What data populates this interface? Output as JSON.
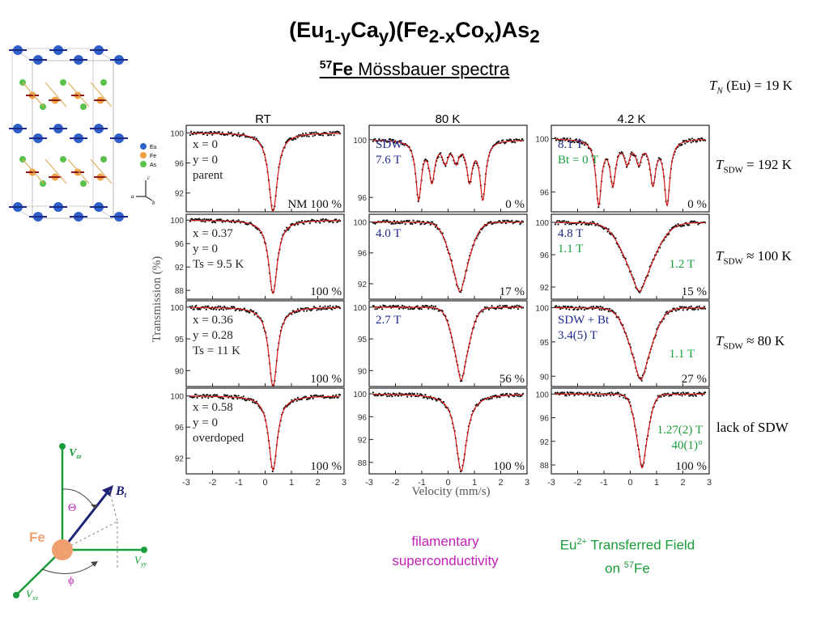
{
  "title": {
    "pre": "(Eu",
    "s1": "1-y",
    "mid1": "Ca",
    "s2": "y",
    "mid2": ")(Fe",
    "s3": "2-x",
    "mid3": "Co",
    "s4": "x",
    "mid4": ")As",
    "s5": "2"
  },
  "subtitle": {
    "sup": "57",
    "bold": "Fe",
    "rest": " Mössbauer spectra"
  },
  "side_labels": {
    "tn": {
      "T": "T",
      "sub": "N",
      "rest": " (Eu) = 19 K"
    },
    "row1": {
      "T": "T",
      "sub": "SDW",
      "rest": " = 192 K"
    },
    "row2": {
      "T": "T",
      "sub": "SDW",
      "rest": " ≈ 100 K"
    },
    "row3": {
      "T": "T",
      "sub": "SDW",
      "rest": " ≈ 80 K"
    },
    "row4": "lack of SDW"
  },
  "bottom_notes": {
    "filamentary_line1": "filamentary",
    "filamentary_line2": "superconductivity",
    "transferred_pre": "Eu",
    "transferred_sup": "2+",
    "transferred_rest": " Transferred Field",
    "transferred_line2_pre": "on ",
    "transferred_line2_sup": "57",
    "transferred_line2_rest": "Fe"
  },
  "colors": {
    "data_points": "#111111",
    "fit_line": "#d01818",
    "blue_text": "#1c2a8c",
    "green_text": "#1a9c3a",
    "magenta_text": "#c21fb8",
    "fe_atom": "#f0a070",
    "eu_atom": "#2f5fc8",
    "as_atom": "#5ac24a"
  },
  "diagram": {
    "vzz": "V",
    "vzz_sub": "zz",
    "vyy": "V",
    "vyy_sub": "yy",
    "vxx": "V",
    "vxx_sub": "xx",
    "bt": "B",
    "bt_sub": "t",
    "theta": "Θ",
    "phi": "ϕ",
    "fe": "Fe"
  },
  "crystal_legend": {
    "eu": "Eu",
    "fe": "Fe",
    "as": "As",
    "c_axis": "c",
    "a_axis": "a",
    "b_axis": "b"
  },
  "chart_data": {
    "type": "scatter",
    "xlabel": "Velocity (mm/s)",
    "ylabel": "Transmission (%)",
    "xlim": [
      -3,
      3
    ],
    "xticks": [
      -3,
      -2,
      -1,
      0,
      1,
      2,
      3
    ],
    "columns": [
      "RT",
      "80 K",
      "4.2 K"
    ],
    "panels": [
      {
        "row": 0,
        "col": 0,
        "yticks": [
          100,
          96,
          92
        ],
        "ylim": [
          89.5,
          101
        ],
        "lines": [
          14,
          15,
          16,
          17,
          18,
          19,
          20,
          21,
          22,
          23,
          24
        ],
        "pct": "NM 100 %",
        "lines_color": "dark",
        "fit": {
          "type": "singlet",
          "center": 0.3,
          "depth": 10.5,
          "width": 0.2
        }
      },
      {
        "row": 0,
        "col": 1,
        "yticks": [
          100,
          96
        ],
        "ylim": [
          95,
          101
        ],
        "lines": [
          25,
          26
        ],
        "pct": "0 %",
        "lines_color": "blue",
        "fit": {
          "type": "sextet",
          "center": 0.1,
          "field_T": 7.6,
          "depth": 4.0,
          "width": 0.13
        }
      },
      {
        "row": 0,
        "col": 2,
        "yticks": [
          100,
          96
        ],
        "ylim": [
          94.5,
          101
        ],
        "lines": [
          27,
          28
        ],
        "pct": "0 %",
        "lines_color": "mixed",
        "fit": {
          "type": "sextet",
          "center": 0.1,
          "field_T": 8.1,
          "depth": 4.8,
          "width": 0.13
        }
      },
      {
        "row": 1,
        "col": 0,
        "yticks": [
          100,
          96,
          92,
          88
        ],
        "ylim": [
          86.5,
          101
        ],
        "lines": [
          29,
          30,
          31
        ],
        "pct": "100 %",
        "lines_color": "dark",
        "fit": {
          "type": "singlet",
          "center": 0.3,
          "depth": 12.5,
          "width": 0.2
        }
      },
      {
        "row": 1,
        "col": 1,
        "yticks": [
          100,
          96,
          92
        ],
        "ylim": [
          90,
          101
        ],
        "lines": [
          32
        ],
        "pct": "17 %",
        "lines_color": "blue",
        "fit": {
          "type": "broad",
          "center": 0.45,
          "depth": 9.0,
          "width": 0.55
        }
      },
      {
        "row": 1,
        "col": 2,
        "yticks": [
          100,
          96,
          92
        ],
        "ylim": [
          90.5,
          101
        ],
        "lines": [
          33,
          34,
          35
        ],
        "pct": "15 %",
        "lines_color": "mixed",
        "fit": {
          "type": "broad",
          "center": 0.35,
          "depth": 8.5,
          "width": 0.85
        }
      },
      {
        "row": 2,
        "col": 0,
        "yticks": [
          100,
          95,
          90
        ],
        "ylim": [
          87.5,
          101
        ],
        "lines": [
          36,
          37,
          38
        ],
        "pct": "100 %",
        "lines_color": "dark",
        "fit": {
          "type": "singlet",
          "center": 0.3,
          "depth": 12.5,
          "width": 0.2
        }
      },
      {
        "row": 2,
        "col": 1,
        "yticks": [
          100,
          95,
          90
        ],
        "ylim": [
          87.5,
          101
        ],
        "lines": [
          39
        ],
        "pct": "56 %",
        "lines_color": "blue",
        "fit": {
          "type": "broad",
          "center": 0.5,
          "depth": 11.5,
          "width": 0.45
        }
      },
      {
        "row": 2,
        "col": 2,
        "yticks": [
          100,
          95,
          90
        ],
        "ylim": [
          88.5,
          101
        ],
        "lines": [
          40,
          41,
          42
        ],
        "pct": "27 %",
        "lines_color": "mixed",
        "fit": {
          "type": "broad",
          "center": 0.4,
          "depth": 10.5,
          "width": 0.65
        }
      },
      {
        "row": 3,
        "col": 0,
        "yticks": [
          100,
          96,
          92
        ],
        "ylim": [
          90,
          101
        ],
        "lines": [
          43,
          44,
          45
        ],
        "pct": "100 %",
        "lines_color": "dark",
        "fit": {
          "type": "singlet",
          "center": 0.3,
          "depth": 9.5,
          "width": 0.2
        }
      },
      {
        "row": 3,
        "col": 1,
        "yticks": [
          100,
          96,
          92,
          88
        ],
        "ylim": [
          86,
          101
        ],
        "lines": [],
        "pct": "100 %",
        "lines_color": "dark",
        "fit": {
          "type": "singlet",
          "center": 0.5,
          "depth": 13.5,
          "width": 0.25
        }
      },
      {
        "row": 3,
        "col": 2,
        "yticks": [
          100,
          96,
          92,
          88
        ],
        "ylim": [
          86.5,
          101
        ],
        "lines": [
          46,
          47
        ],
        "pct": "100 %",
        "lines_color": "green",
        "fit": {
          "type": "broad",
          "center": 0.45,
          "depth": 12.5,
          "width": 0.35
        }
      }
    ],
    "texts": {
      "14": "x = 0",
      "15": "y = 0",
      "16": "parent",
      "17": "",
      "18": "",
      "19": "",
      "20": "",
      "21": "",
      "22": "",
      "23": "",
      "24": "",
      "25": "SDW",
      "26": "7.6 T",
      "27": "8.1 T",
      "28": "Bt = 0 T",
      "29": "x = 0.37",
      "30": "y = 0",
      "31": "Ts = 9.5 K",
      "32": "4.0 T",
      "33": "4.8 T",
      "34": "1.1 T",
      "35": "1.2 T",
      "36": "x = 0.36",
      "37": "y = 0.28",
      "38": "Ts = 11 K",
      "39": "2.7 T",
      "40": "SDW + Bt",
      "41": "3.4(5) T",
      "42": "1.1 T",
      "43": "x = 0.58",
      "44": "y = 0",
      "45": "overdoped",
      "46": "1.27(2) T",
      "47": "40(1)°"
    }
  }
}
